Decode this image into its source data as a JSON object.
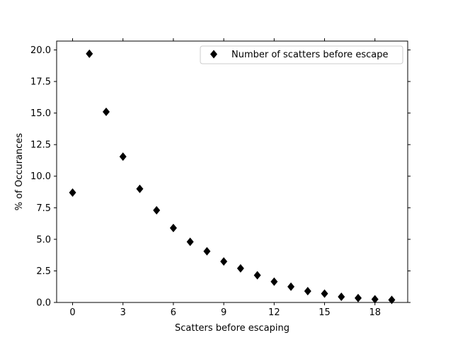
{
  "chart_data": {
    "type": "scatter",
    "xlabel": "Scatters before escaping",
    "ylabel": "% of Occurances",
    "xlim": [
      -0.95,
      19.95
    ],
    "ylim": [
      0,
      20.7
    ],
    "x_ticks": [
      0,
      3,
      6,
      9,
      12,
      15,
      18
    ],
    "y_ticks": [
      0.0,
      2.5,
      5.0,
      7.5,
      10.0,
      12.5,
      15.0,
      17.5,
      20.0
    ],
    "x_tick_labels": [
      "0",
      "3",
      "6",
      "9",
      "12",
      "15",
      "18"
    ],
    "y_tick_labels": [
      "0.0",
      "2.5",
      "5.0",
      "7.5",
      "10.0",
      "12.5",
      "15.0",
      "17.5",
      "20.0"
    ],
    "grid": false,
    "legend": {
      "position": "top-right"
    },
    "series": [
      {
        "name": "Number of scatters before escape",
        "marker": "diamond",
        "color": "#000000",
        "x": [
          0,
          1,
          2,
          3,
          4,
          5,
          6,
          7,
          8,
          9,
          10,
          11,
          12,
          13,
          14,
          15,
          16,
          17,
          18,
          19
        ],
        "y": [
          8.7,
          19.7,
          15.1,
          11.55,
          9.0,
          7.3,
          5.9,
          4.8,
          4.05,
          3.25,
          2.7,
          2.15,
          1.65,
          1.25,
          0.9,
          0.7,
          0.45,
          0.35,
          0.25,
          0.2
        ]
      }
    ]
  }
}
